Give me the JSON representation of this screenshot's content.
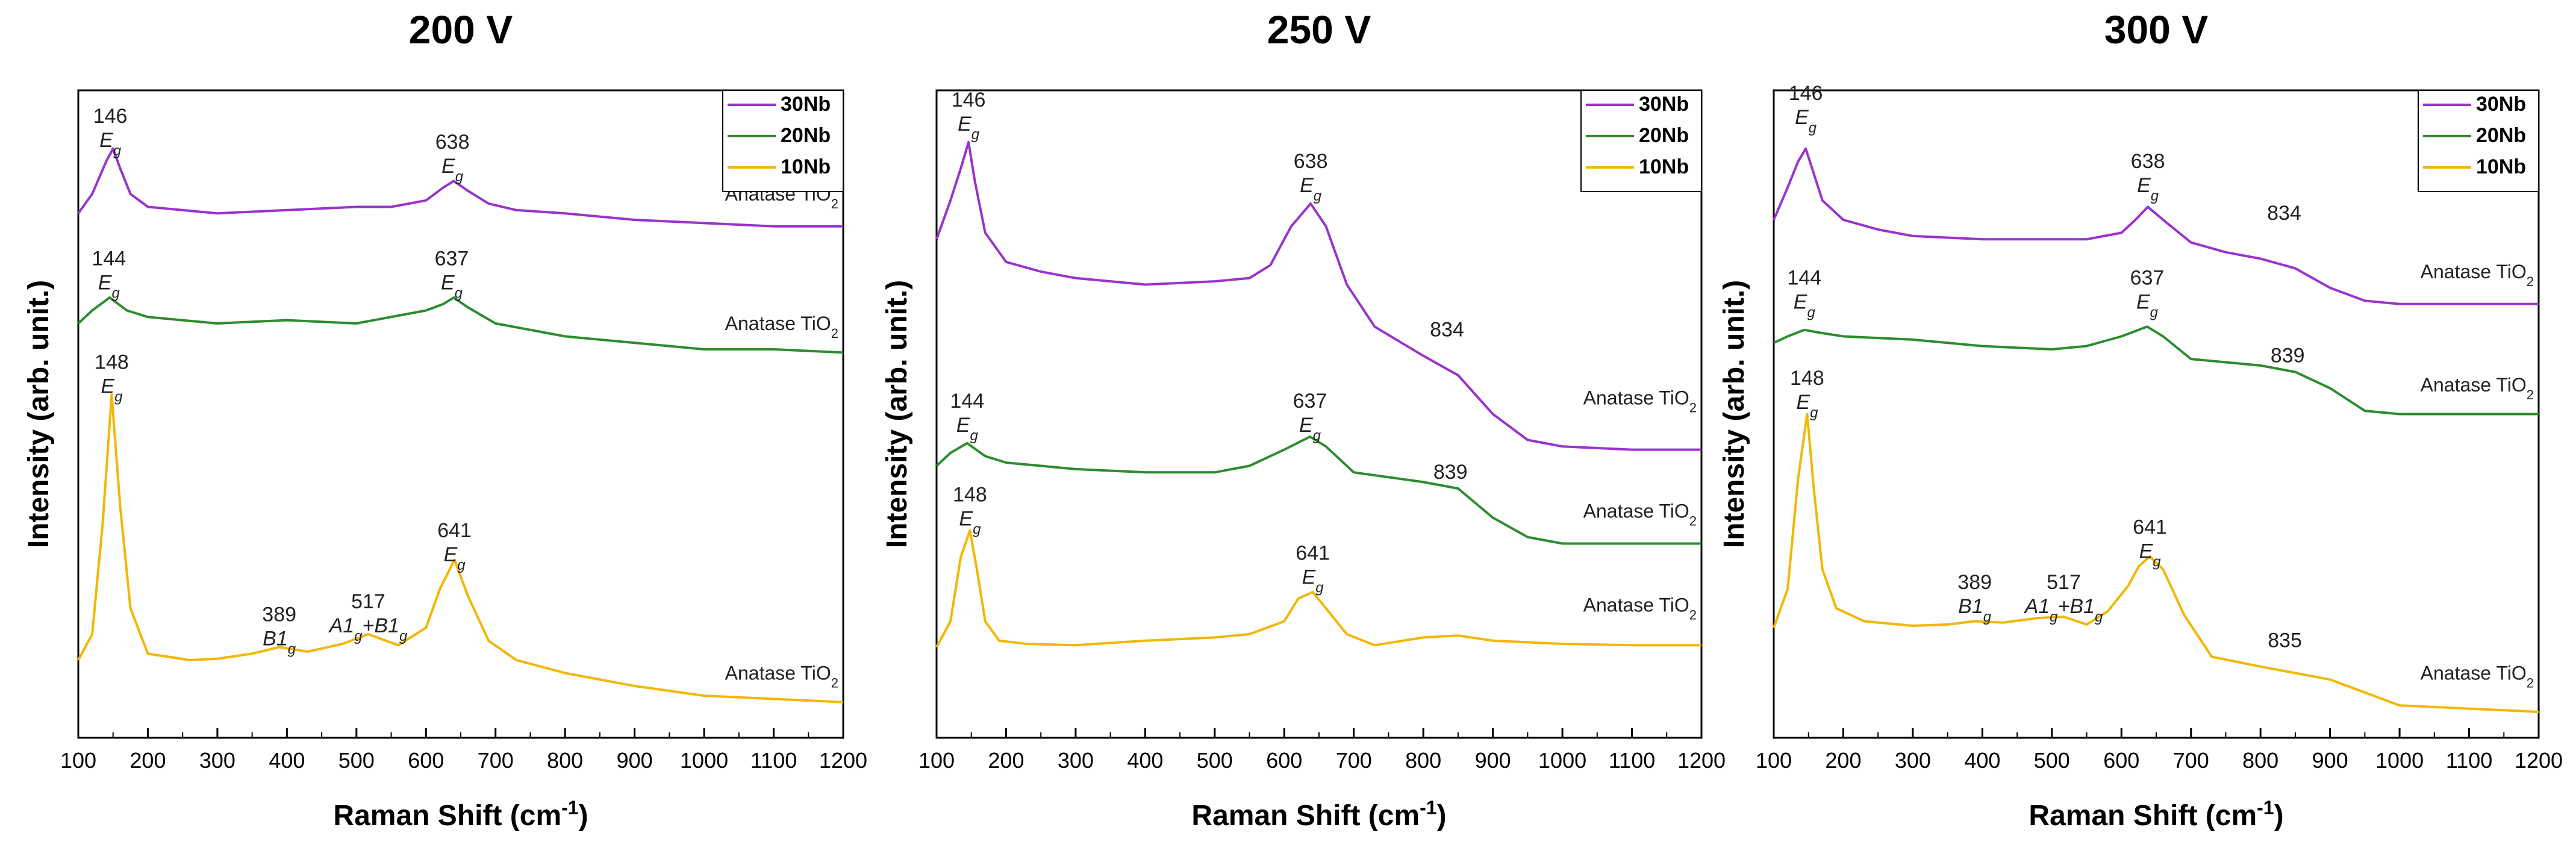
{
  "chart_data": [
    {
      "type": "line",
      "title": "200 V",
      "xlabel": "Raman Shift (cm⁻¹)",
      "ylabel": "Intensity (arb. unit.)",
      "xlim": [
        100,
        1200
      ],
      "ylim": [
        0,
        100
      ],
      "xticks": [
        "100",
        "200",
        "300",
        "400",
        "500",
        "600",
        "700",
        "800",
        "900",
        "1000",
        "1100",
        "1200"
      ],
      "legend": [
        "30Nb",
        "20Nb",
        "10Nb"
      ],
      "series": [
        {
          "name": "30Nb",
          "color": "#9933cc",
          "x": [
            100,
            120,
            140,
            150,
            160,
            175,
            200,
            250,
            300,
            400,
            500,
            550,
            600,
            625,
            640,
            660,
            690,
            730,
            800,
            900,
            1000,
            1100,
            1200
          ],
          "y": [
            81,
            84,
            89,
            91,
            88,
            84,
            82,
            81.5,
            81,
            81.5,
            82,
            82,
            83,
            85,
            86,
            84.5,
            82.5,
            81.5,
            81,
            80,
            79.5,
            79,
            79
          ]
        },
        {
          "name": "20Nb",
          "color": "#2e8b2e",
          "x": [
            100,
            120,
            145,
            170,
            200,
            300,
            400,
            500,
            600,
            625,
            640,
            660,
            700,
            800,
            900,
            1000,
            1100,
            1200
          ],
          "y": [
            64,
            66,
            68,
            66,
            65,
            64,
            64.5,
            64,
            66,
            67,
            68,
            66.5,
            64,
            62,
            61,
            60,
            60,
            59.5
          ]
        },
        {
          "name": "10Nb",
          "color": "#f2b705",
          "x": [
            100,
            120,
            135,
            148,
            160,
            175,
            200,
            230,
            260,
            300,
            350,
            389,
            430,
            480,
            517,
            560,
            600,
            620,
            641,
            660,
            690,
            730,
            800,
            900,
            1000,
            1100,
            1200
          ],
          "y": [
            12,
            16,
            33,
            53,
            36,
            20,
            13,
            12.5,
            12,
            12.2,
            13,
            14,
            13.3,
            14.5,
            16,
            14.3,
            17,
            23,
            27.5,
            22,
            15,
            12,
            10,
            8,
            6.5,
            6,
            5.5
          ]
        }
      ],
      "annotations": [
        {
          "value": "146",
          "mode": "Eg",
          "x": 146,
          "y": 95
        },
        {
          "value": "638",
          "mode": "Eg",
          "x": 638,
          "y": 91
        },
        {
          "value": "144",
          "mode": "Eg",
          "x": 144,
          "y": 73
        },
        {
          "value": "637",
          "mode": "Eg",
          "x": 637,
          "y": 73
        },
        {
          "value": "148",
          "mode": "Eg",
          "x": 148,
          "y": 57
        },
        {
          "value": "389",
          "mode": "B1g",
          "x": 389,
          "y": 18
        },
        {
          "value": "517",
          "mode": "A1g+B1g",
          "x": 517,
          "y": 20
        },
        {
          "value": "641",
          "mode": "Eg",
          "x": 641,
          "y": 31
        }
      ],
      "phase_labels": [
        {
          "text": "Anatase TiO₂",
          "y": 83
        },
        {
          "text": "Anatase TiO₂",
          "y": 63
        },
        {
          "text": "Anatase TiO₂",
          "y": 9
        }
      ]
    },
    {
      "type": "line",
      "title": "250 V",
      "xlabel": "Raman Shift (cm⁻¹)",
      "ylabel": "Intensity (arb. unit.)",
      "xlim": [
        100,
        1200
      ],
      "ylim": [
        0,
        100
      ],
      "xticks": [
        "100",
        "200",
        "300",
        "400",
        "500",
        "600",
        "700",
        "800",
        "900",
        "1000",
        "1100",
        "1200"
      ],
      "legend": [
        "30Nb",
        "20Nb",
        "10Nb"
      ],
      "series": [
        {
          "name": "30Nb",
          "color": "#9933cc",
          "x": [
            100,
            120,
            135,
            146,
            155,
            170,
            200,
            250,
            300,
            400,
            500,
            550,
            580,
            610,
            638,
            660,
            690,
            730,
            800,
            850,
            900,
            950,
            1000,
            1100,
            1200
          ],
          "y": [
            77,
            83,
            88,
            92,
            86,
            78,
            73.5,
            72,
            71,
            70,
            70.5,
            71,
            73,
            79,
            82.5,
            79,
            70,
            63.5,
            59,
            56,
            50,
            46,
            45,
            44.5,
            44.5
          ]
        },
        {
          "name": "20Nb",
          "color": "#2e8b2e",
          "x": [
            100,
            120,
            144,
            170,
            200,
            300,
            400,
            500,
            550,
            600,
            637,
            660,
            700,
            800,
            850,
            900,
            950,
            1000,
            1100,
            1200
          ],
          "y": [
            42,
            44,
            45.5,
            43.5,
            42.5,
            41.5,
            41,
            41,
            42,
            44.5,
            46.5,
            45,
            41,
            39.5,
            38.5,
            34,
            31,
            30,
            30,
            30
          ]
        },
        {
          "name": "10Nb",
          "color": "#f2b705",
          "x": [
            100,
            120,
            135,
            148,
            158,
            170,
            190,
            230,
            300,
            400,
            500,
            550,
            600,
            620,
            641,
            660,
            690,
            730,
            800,
            850,
            900,
            1000,
            1100,
            1200
          ],
          "y": [
            14,
            18,
            28,
            32,
            26,
            18,
            15,
            14.5,
            14.3,
            15,
            15.5,
            16,
            18,
            21.5,
            22.5,
            20,
            16,
            14.3,
            15.5,
            15.8,
            15,
            14.5,
            14.3,
            14.3
          ]
        }
      ],
      "annotations": [
        {
          "value": "146",
          "mode": "Eg",
          "x": 146,
          "y": 97.5
        },
        {
          "value": "638",
          "mode": "Eg",
          "x": 638,
          "y": 88
        },
        {
          "value": "834",
          "mode": "",
          "x": 834,
          "y": 62
        },
        {
          "value": "144",
          "mode": "Eg",
          "x": 144,
          "y": 51
        },
        {
          "value": "637",
          "mode": "Eg",
          "x": 637,
          "y": 51
        },
        {
          "value": "839",
          "mode": "",
          "x": 839,
          "y": 40
        },
        {
          "value": "148",
          "mode": "Eg",
          "x": 148,
          "y": 36.5
        },
        {
          "value": "641",
          "mode": "Eg",
          "x": 641,
          "y": 27.5
        }
      ],
      "phase_labels": [
        {
          "text": "Anatase TiO₂",
          "y": 51.5
        },
        {
          "text": "Anatase TiO₂",
          "y": 34
        },
        {
          "text": "Anatase TiO₂",
          "y": 19.5
        }
      ]
    },
    {
      "type": "line",
      "title": "300 V",
      "xlabel": "Raman Shift (cm⁻¹)",
      "ylabel": "Intensity (arb. unit.)",
      "xlim": [
        100,
        1200
      ],
      "ylim": [
        0,
        100
      ],
      "xticks": [
        "100",
        "200",
        "300",
        "400",
        "500",
        "600",
        "700",
        "800",
        "900",
        "1000",
        "1100",
        "1200"
      ],
      "legend": [
        "30Nb",
        "20Nb",
        "10Nb"
      ],
      "series": [
        {
          "name": "30Nb",
          "color": "#9933cc",
          "x": [
            100,
            120,
            135,
            146,
            155,
            170,
            200,
            250,
            300,
            400,
            500,
            550,
            600,
            620,
            638,
            660,
            700,
            750,
            800,
            850,
            900,
            950,
            1000,
            1100,
            1200
          ],
          "y": [
            80,
            85,
            89,
            91,
            88,
            83,
            80,
            78.5,
            77.5,
            77,
            77,
            77,
            78,
            80,
            82,
            80,
            76.5,
            75,
            74,
            72.5,
            69.5,
            67.5,
            67,
            67,
            67
          ]
        },
        {
          "name": "20Nb",
          "color": "#2e8b2e",
          "x": [
            100,
            120,
            144,
            170,
            200,
            300,
            400,
            500,
            550,
            600,
            637,
            660,
            700,
            750,
            800,
            850,
            900,
            950,
            1000,
            1100,
            1200
          ],
          "y": [
            61,
            62,
            63,
            62.5,
            62,
            61.5,
            60.5,
            60,
            60.5,
            62,
            63.5,
            62,
            58.5,
            58,
            57.5,
            56.5,
            54,
            50.5,
            50,
            50,
            50
          ]
        },
        {
          "name": "10Nb",
          "color": "#f2b705",
          "x": [
            100,
            120,
            135,
            148,
            158,
            170,
            190,
            230,
            300,
            350,
            389,
            430,
            480,
            517,
            550,
            580,
            610,
            625,
            641,
            660,
            690,
            730,
            800,
            850,
            900,
            950,
            1000,
            1100,
            1200
          ],
          "y": [
            17,
            23,
            40,
            50,
            38,
            26,
            20,
            18,
            17.3,
            17.5,
            18,
            17.8,
            18.5,
            18.7,
            17.5,
            19.5,
            23.5,
            26.5,
            28,
            26,
            19,
            12.5,
            11,
            10,
            9,
            7,
            5,
            4.5,
            4
          ]
        }
      ],
      "annotations": [
        {
          "value": "146",
          "mode": "Eg",
          "x": 146,
          "y": 98.5
        },
        {
          "value": "638",
          "mode": "Eg",
          "x": 638,
          "y": 88
        },
        {
          "value": "834",
          "mode": "",
          "x": 834,
          "y": 80
        },
        {
          "value": "144",
          "mode": "Eg",
          "x": 144,
          "y": 70
        },
        {
          "value": "637",
          "mode": "Eg",
          "x": 637,
          "y": 70
        },
        {
          "value": "839",
          "mode": "",
          "x": 839,
          "y": 58
        },
        {
          "value": "148",
          "mode": "Eg",
          "x": 148,
          "y": 54.5
        },
        {
          "value": "389",
          "mode": "B1g",
          "x": 389,
          "y": 23
        },
        {
          "value": "517",
          "mode": "A1g+B1g",
          "x": 517,
          "y": 23
        },
        {
          "value": "641",
          "mode": "Eg",
          "x": 641,
          "y": 31.5
        },
        {
          "value": "835",
          "mode": "",
          "x": 835,
          "y": 14
        }
      ],
      "phase_labels": [
        {
          "text": "Anatase TiO₂",
          "y": 71
        },
        {
          "text": "Anatase TiO₂",
          "y": 53.5
        },
        {
          "text": "Anatase TiO₂",
          "y": 9
        }
      ]
    }
  ]
}
